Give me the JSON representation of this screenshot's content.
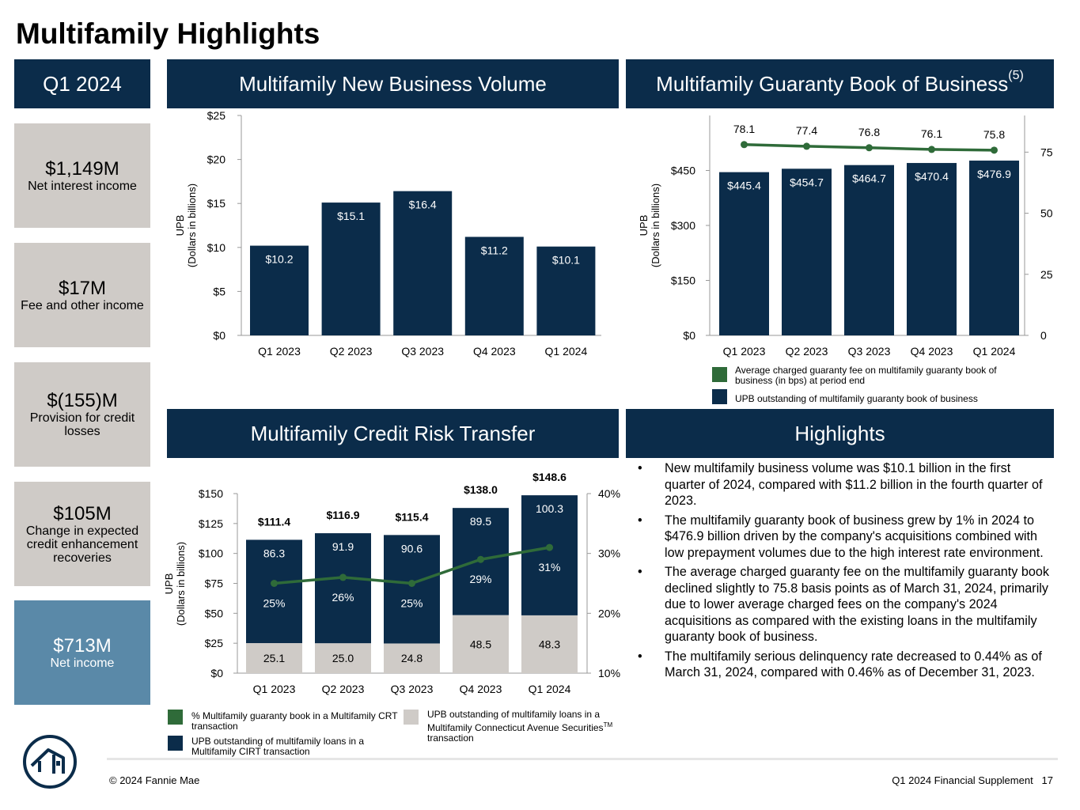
{
  "page": {
    "title": "Multifamily Highlights",
    "footer_left": "© 2024 Fannie Mae",
    "footer_right": "Q1 2024 Financial Supplement   17"
  },
  "kpis": {
    "period": "Q1 2024",
    "items": [
      {
        "value": "$1,149M",
        "label": "Net interest income"
      },
      {
        "value": "$17M",
        "label": "Fee and other income"
      },
      {
        "value": "$(155)M",
        "label": "Provision for credit losses"
      },
      {
        "value": "$105M",
        "label": "Change in expected credit enhancement recoveries"
      },
      {
        "value": "$713M",
        "label": "Net income"
      }
    ]
  },
  "headers": {
    "new_business": "Multifamily New Business Volume",
    "guaranty_book": "Multifamily Guaranty Book of Business",
    "guaranty_book_note": "(5)",
    "crt": "Multifamily Credit Risk Transfer",
    "highlights": "Highlights"
  },
  "colors": {
    "navy": "#0b2c4a",
    "green": "#2f6b39",
    "gray": "#cfcbc7",
    "blue_kpi": "#5a89a8"
  },
  "chart_data": [
    {
      "type": "bar",
      "id": "new_business_volume",
      "categories": [
        "Q1 2023",
        "Q2 2023",
        "Q3 2023",
        "Q4 2023",
        "Q1 2024"
      ],
      "values": [
        10.2,
        15.1,
        16.4,
        11.2,
        10.1
      ],
      "value_labels": [
        "$10.2",
        "$15.1",
        "$16.4",
        "$11.2",
        "$10.1"
      ],
      "ylabel": [
        "UPB",
        "(Dollars in billions)"
      ],
      "ylim": [
        0,
        25
      ],
      "yticks": [
        0,
        5,
        10,
        15,
        20,
        25
      ],
      "ytick_labels": [
        "$0",
        "$5",
        "$10",
        "$15",
        "$20",
        "$25"
      ]
    },
    {
      "type": "bar",
      "id": "guaranty_book",
      "categories": [
        "Q1 2023",
        "Q2 2023",
        "Q3 2023",
        "Q4 2023",
        "Q1 2024"
      ],
      "series": [
        {
          "name": "UPB outstanding of multifamily guaranty book of business",
          "values": [
            445.4,
            454.7,
            464.7,
            470.4,
            476.9
          ],
          "labels": [
            "$445.4",
            "$454.7",
            "$464.7",
            "$470.4",
            "$476.9"
          ]
        },
        {
          "name": "Average charged guaranty fee on multifamily guaranty book of business (in bps) at period end",
          "type": "line",
          "axis": "right",
          "values": [
            78.1,
            77.4,
            76.8,
            76.1,
            75.8
          ],
          "labels": [
            "78.1",
            "77.4",
            "76.8",
            "76.1",
            "75.8"
          ]
        }
      ],
      "ylabel": [
        "UPB",
        "(Dollars in billions)"
      ],
      "ylim": [
        0,
        600
      ],
      "yticks": [
        0,
        150,
        300,
        450
      ],
      "ytick_labels": [
        "$0",
        "$150",
        "$300",
        "$450"
      ],
      "y2lim": [
        0,
        90
      ],
      "y2ticks": [
        0,
        25,
        50,
        75
      ],
      "y2tick_labels": [
        "0",
        "25",
        "50",
        "75"
      ]
    },
    {
      "type": "bar",
      "id": "credit_risk_transfer",
      "stacked": true,
      "categories": [
        "Q1 2023",
        "Q2 2023",
        "Q3 2023",
        "Q4 2023",
        "Q1 2024"
      ],
      "totals": [
        111.4,
        116.9,
        115.4,
        138.0,
        148.6
      ],
      "total_labels": [
        "$111.4",
        "$116.9",
        "$115.4",
        "$138.0",
        "$148.6"
      ],
      "series": [
        {
          "name": "UPB outstanding of multifamily loans in a Multifamily Connecticut Avenue Securities transaction",
          "values": [
            25.1,
            25.0,
            24.8,
            48.5,
            48.3
          ],
          "labels": [
            "25.1",
            "25.0",
            "24.8",
            "48.5",
            "48.3"
          ]
        },
        {
          "name": "UPB outstanding of multifamily loans in a Multifamily CIRT transaction",
          "values": [
            86.3,
            91.9,
            90.6,
            89.5,
            100.3
          ],
          "labels": [
            "86.3",
            "91.9",
            "90.6",
            "89.5",
            "100.3"
          ]
        },
        {
          "name": "% Multifamily guaranty book in a Multifamily CRT transaction",
          "type": "line",
          "axis": "right",
          "values": [
            25,
            26,
            25,
            29,
            31
          ],
          "labels": [
            "25%",
            "26%",
            "25%",
            "29%",
            "31%"
          ]
        }
      ],
      "ylabel": [
        "UPB",
        "(Dollars in billions)"
      ],
      "ylim": [
        0,
        150
      ],
      "yticks": [
        0,
        25,
        50,
        75,
        100,
        125,
        150
      ],
      "ytick_labels": [
        "$0",
        "$25",
        "$50",
        "$75",
        "$100",
        "$125",
        "$150"
      ],
      "y2lim": [
        10,
        40
      ],
      "y2ticks": [
        10,
        20,
        30,
        40
      ],
      "y2tick_labels": [
        "10%",
        "20%",
        "30%",
        "40%"
      ]
    }
  ],
  "legends": {
    "guaranty_fee": "Average charged guaranty fee on multifamily guaranty book of business (in bps) at period end",
    "guaranty_upb": "UPB outstanding of multifamily guaranty book of business",
    "crt_pct": "% Multifamily guaranty book in a Multifamily CRT transaction",
    "crt_cirt": "UPB outstanding of multifamily loans in a Multifamily CIRT transaction",
    "crt_cas": "UPB outstanding of multifamily loans in a Multifamily Connecticut Avenue Securities",
    "crt_cas_tm": "TM",
    "crt_cas_tail": "transaction"
  },
  "highlights": [
    "New multifamily business volume was $10.1 billion in the first quarter of 2024, compared with $11.2 billion in the fourth quarter of 2023.",
    "The multifamily guaranty book of business grew by 1% in 2024 to $476.9 billion driven by the company's acquisitions combined with low prepayment volumes due to the high interest rate environment.",
    "The average charged guaranty fee on the multifamily guaranty book declined slightly to 75.8 basis points as of March 31, 2024, primarily due to lower average charged fees on the company's 2024 acquisitions as compared with the existing loans in the multifamily guaranty book of business.",
    "The multifamily serious delinquency rate decreased to 0.44% as of March 31, 2024, compared with 0.46% as of December 31, 2023."
  ]
}
